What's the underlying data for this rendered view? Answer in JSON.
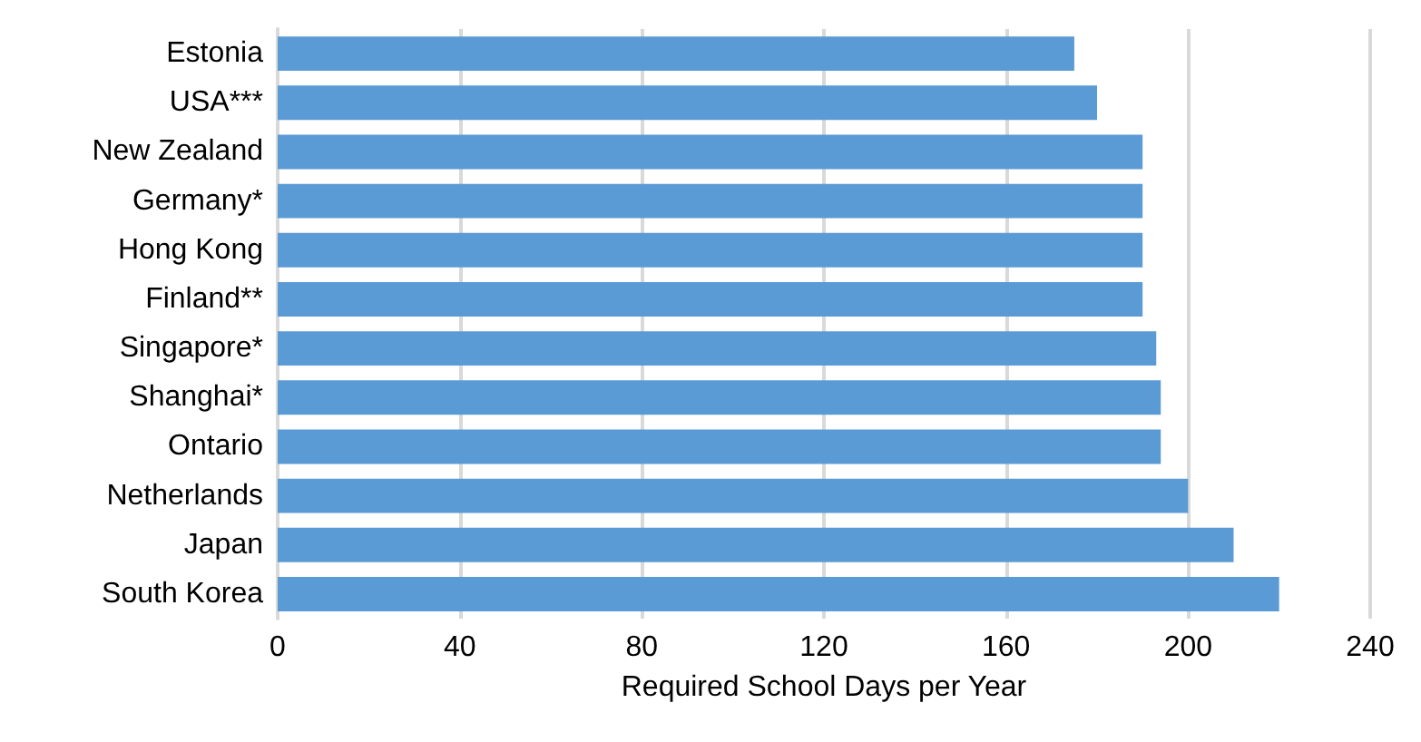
{
  "chart_data": {
    "type": "bar",
    "orientation": "horizontal",
    "xlabel": "Required School Days per Year",
    "categories": [
      "Estonia",
      "USA***",
      "New Zealand",
      "Germany*",
      "Hong Kong",
      "Finland**",
      "Singapore*",
      "Shanghai*",
      "Ontario",
      "Netherlands",
      "Japan",
      "South Korea"
    ],
    "values": [
      175,
      180,
      190,
      190,
      190,
      190,
      193,
      194,
      194,
      200,
      210,
      220
    ],
    "color": "#5b9bd5",
    "xlim": [
      0,
      240
    ],
    "xticks": [
      0,
      40,
      80,
      120,
      160,
      200,
      240
    ],
    "grid": "x"
  }
}
